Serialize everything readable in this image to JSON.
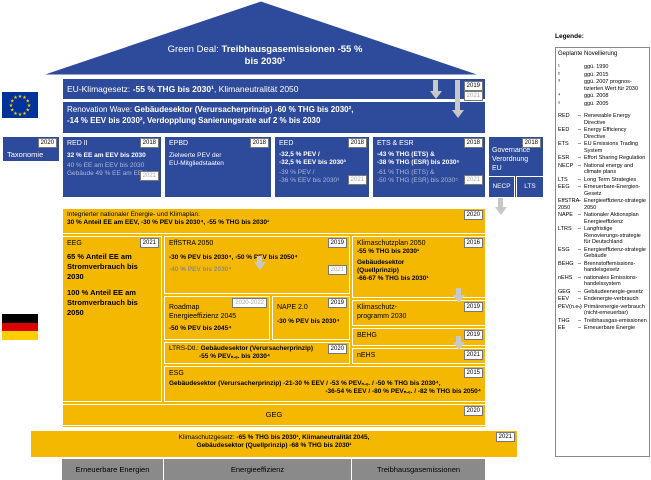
{
  "roof": {
    "title_prefix": "Green Deal: ",
    "title_bold": "Treibhausgasemissionen -55 %",
    "title_line2": "bis 2030¹"
  },
  "klimagesetz_eu": {
    "year": "2019",
    "year2": "2021",
    "text_bold": "-55 % THG bis 2030¹",
    "text_prefix": "EU-Klimagesetz: ",
    "text_suffix": ", Klimaneutralität 2050"
  },
  "renovation": {
    "line1_prefix": "Renovation Wave: ",
    "line1_bold": "Gebäudesektor (Verursacherprinzip) -60 % THG bis 2030², ",
    "line2": "-14 % EEV bis 2030², Verdopplung Sanierungsrate auf 2 % bis 2030"
  },
  "taxonomie": {
    "label": "Taxonomie",
    "year": "2020"
  },
  "red2": {
    "title": "RED II",
    "year": "2018",
    "line1": "32 % EE am EEV bis 2030",
    "line2": "40 % EE am EEV bis 2030",
    "line2_year": "2021",
    "line3": "Gebäude 49 % EE am EEV"
  },
  "epbd": {
    "title": "EPBD",
    "year": "2018",
    "line1": "Zielwerte PEV der",
    "line2": "EU-Mitgliedstaaten"
  },
  "eed": {
    "title": "EED",
    "year": "2018",
    "line1": "-32,5 % PEV /",
    "line2": "-32,5 % EEV bis 2030³",
    "line3": "-39 % PEV /",
    "line4": "-36 % EEV bis 2030³",
    "year2": "2021"
  },
  "ets": {
    "title": "ETS & ESR",
    "year": "2018",
    "line1": "-43 % THG (ETS) &",
    "line2": "-38 % THG (ESR) bis 2030⁵",
    "line3": "-61 % THG (ETS) &",
    "line4": "-50 % THG (ESR) bis 2030⁵",
    "year2": "2021"
  },
  "governance": {
    "title1": "Governance",
    "title2": "Verordnung",
    "title3": "EU",
    "year": "2018",
    "necp": "NECP",
    "lts": "LTS"
  },
  "nekp": {
    "line1": "Integrierter nationaler Energie- und Klimaplan:",
    "line2": "30 % Anteil EE am EEV, -30 % PEV bis 2030⁴, -55 % THG bis 2030¹",
    "year": "2020"
  },
  "eeg": {
    "title": "EEG",
    "year": "2021",
    "p1a": "65 % Anteil EE am",
    "p1b": "Stromverbrauch bis",
    "p1c": "2030",
    "p2a": "100 % Anteil EE am",
    "p2b": "Stromverbrauch bis",
    "p2c": "2050"
  },
  "effstra": {
    "title": "EffSTRA 2050",
    "year": "2019",
    "line1": "-30 % PEV bis 2030⁴, -50 % PEV bis 2050⁴",
    "line2": "-40 % PEV bis 2030⁴",
    "year2": "2021"
  },
  "roadmap": {
    "title1": "Roadmap",
    "title2": "Energieeffizienz 2045",
    "year": "2020-2022",
    "line": "-50 % PEV bis 2045⁴"
  },
  "nape": {
    "title": "NAPE 2.0",
    "year": "2019",
    "line": "-30 % PEV bis 2030⁴"
  },
  "ltrs": {
    "prefix": "LTRS-Dtl.:",
    "line1": "Gebäudesektor (Verursacherprinzip)",
    "line2": "-55 % PEVₙ.ₑ. bis 2030⁴",
    "year": "2020"
  },
  "klimaschutzplan": {
    "title": "Klimaschutzplan 2050",
    "year": "2016",
    "line1": "-55 % THG bis 2030¹",
    "line2": "Gebäudesektor",
    "line3": "(Quellprinzip)",
    "line4": "-66-67 % THG bis 2030¹"
  },
  "kp2030": {
    "title1": "Klimaschutz-",
    "title2": "programm 2030",
    "year": "2019"
  },
  "behg": {
    "title": "BEHG",
    "year": "2019"
  },
  "nehs": {
    "title": "nEHS",
    "year": "2021"
  },
  "esg": {
    "title": "ESG",
    "year": "2015",
    "line1": "Gebäudesektor (Verursacherprinzip) -21-30 % EEV / -53 % PEVₙ.ₑ. / -50 % THG bis 2030⁴,",
    "line2": "-36-54 % EEV / -80 % PEVₙ.ₑ. / -82 % THG bis 2050⁴"
  },
  "geg": {
    "title": "GEG",
    "year": "2020"
  },
  "ksg": {
    "prefix": "Klimaschutzgesetz: ",
    "line1_bold": "-65 % THG bis 2030¹, Klimaneutralität 2045,",
    "line2": "Gebäudesektor (Quellprinzip) -68 % THG bis 2030¹",
    "year": "2021"
  },
  "bottom": {
    "col1": "Erneuerbare Energien",
    "col2": "Energieeffizienz",
    "col3": "Treibhausgasemissionen"
  },
  "legend": {
    "title": "Legende:",
    "box_title": "Geplante Novellierung",
    "notes": [
      {
        "k": "¹",
        "v": "ggü. 1990"
      },
      {
        "k": "²",
        "v": "ggü. 2015"
      },
      {
        "k": "³",
        "v": "ggü. 2007 prognos-tizierten Wert für 2030"
      },
      {
        "k": "⁴",
        "v": "ggü. 2008"
      },
      {
        "k": "⁵",
        "v": "ggü. 2005"
      }
    ],
    "abbr": [
      {
        "k": "RED",
        "v": "Renewable Energy Directive"
      },
      {
        "k": "EED",
        "v": "Energy Efficiency Directive"
      },
      {
        "k": "ETS",
        "v": "EU Emissions Trading System"
      },
      {
        "k": "ESR",
        "v": "Effort Sharing Regulation"
      },
      {
        "k": "NECP",
        "v": "National energy and climate plans"
      },
      {
        "k": "LTS",
        "v": "Long Term Strategies"
      },
      {
        "k": "EEG",
        "v": "Erneuerbare-Energien-Gesetz"
      },
      {
        "k": "EffSTRA 2050",
        "v": "Energieeffizienz-strategie 2050"
      },
      {
        "k": "NAPE",
        "v": "Nationaler Aktionsplan Energieeffizienz"
      },
      {
        "k": "LTRS",
        "v": "Langfristige Renovierungs-strategie für Deutschland"
      },
      {
        "k": "ESG",
        "v": "Energieeffizienz-strategie Gebäude"
      },
      {
        "k": "BEHG",
        "v": "Brennstoffemissions-handelsgesetz"
      },
      {
        "k": "nEHS",
        "v": "nationales Emissions-handelssystem"
      },
      {
        "k": "GEG",
        "v": "Gebäudeenergie-gesetz"
      },
      {
        "k": "EEV",
        "v": "Endenergie-verbrauch"
      },
      {
        "k": "PEV(n.e.)",
        "v": "Primärenergie-verbrauch (nicht-erneuerbar)"
      },
      {
        "k": "THG",
        "v": "Treibhausgas-emissionen"
      },
      {
        "k": "EE",
        "v": "Erneuerbare Energie"
      }
    ]
  },
  "colors": {
    "blue": "#2e4a9b",
    "gold": "#f5b800",
    "grey": "#8a8a8a",
    "eu_blue": "#003399",
    "eu_star": "#ffcc00"
  }
}
